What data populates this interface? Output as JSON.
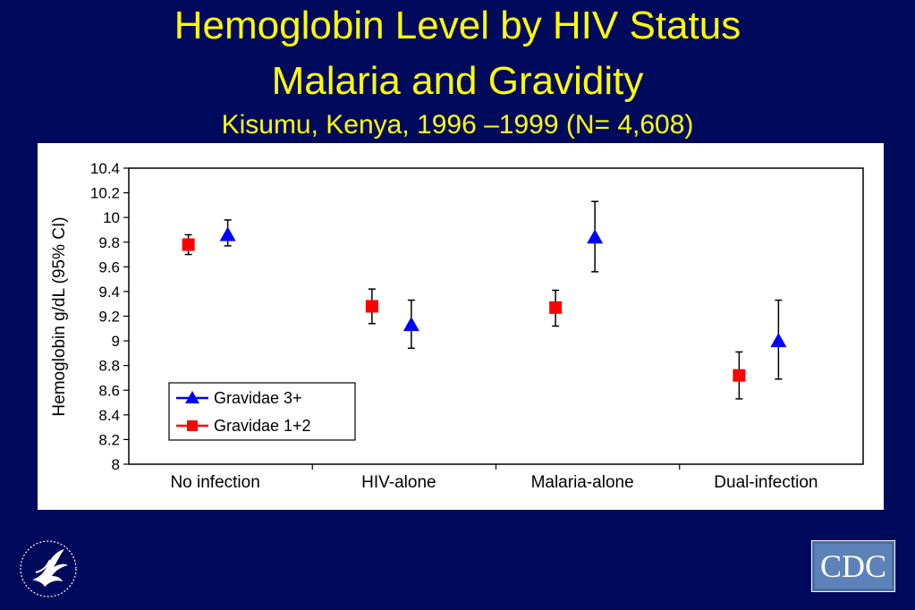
{
  "header": {
    "title_line1": "Hemoglobin Level by HIV Status",
    "title_line2": "Malaria and Gravidity",
    "subtitle": "Kisumu, Kenya, 1996 –1999 (N= 4,608)"
  },
  "logos": {
    "left": "hhs-eagle-seal-icon",
    "right_text": "CDC"
  },
  "colors": {
    "background": "#000a5c",
    "title": "#ffff00",
    "gravidae_3plus": "#0000ff",
    "gravidae_1_2": "#ff0000"
  },
  "chart_data": {
    "type": "scatter",
    "title": "",
    "xlabel": "",
    "ylabel": "Hemoglobin g/dL (95% CI)",
    "categories": [
      "No infection",
      "HIV-alone",
      "Malaria-alone",
      "Dual-infection"
    ],
    "ylim": [
      8,
      10.4
    ],
    "yticks": [
      "10.4",
      "10.2",
      "10",
      "9.8",
      "9.6",
      "9.4",
      "9.2",
      "9",
      "8.8",
      "8.6",
      "8.4",
      "8.2",
      "8"
    ],
    "grid": false,
    "legend_position": "bottom-left",
    "series": [
      {
        "name": "Gravidae 3+",
        "marker": "triangle",
        "color": "#0000ff",
        "values": [
          9.86,
          9.13,
          9.84,
          9.0
        ],
        "ci_low": [
          9.77,
          8.94,
          9.56,
          8.69
        ],
        "ci_high": [
          9.98,
          9.33,
          10.13,
          9.33
        ]
      },
      {
        "name": "Gravidae 1+2",
        "marker": "square",
        "color": "#ff0000",
        "values": [
          9.78,
          9.28,
          9.27,
          8.72
        ],
        "ci_low": [
          9.7,
          9.14,
          9.12,
          8.53
        ],
        "ci_high": [
          9.86,
          9.42,
          9.41,
          8.91
        ]
      }
    ]
  }
}
